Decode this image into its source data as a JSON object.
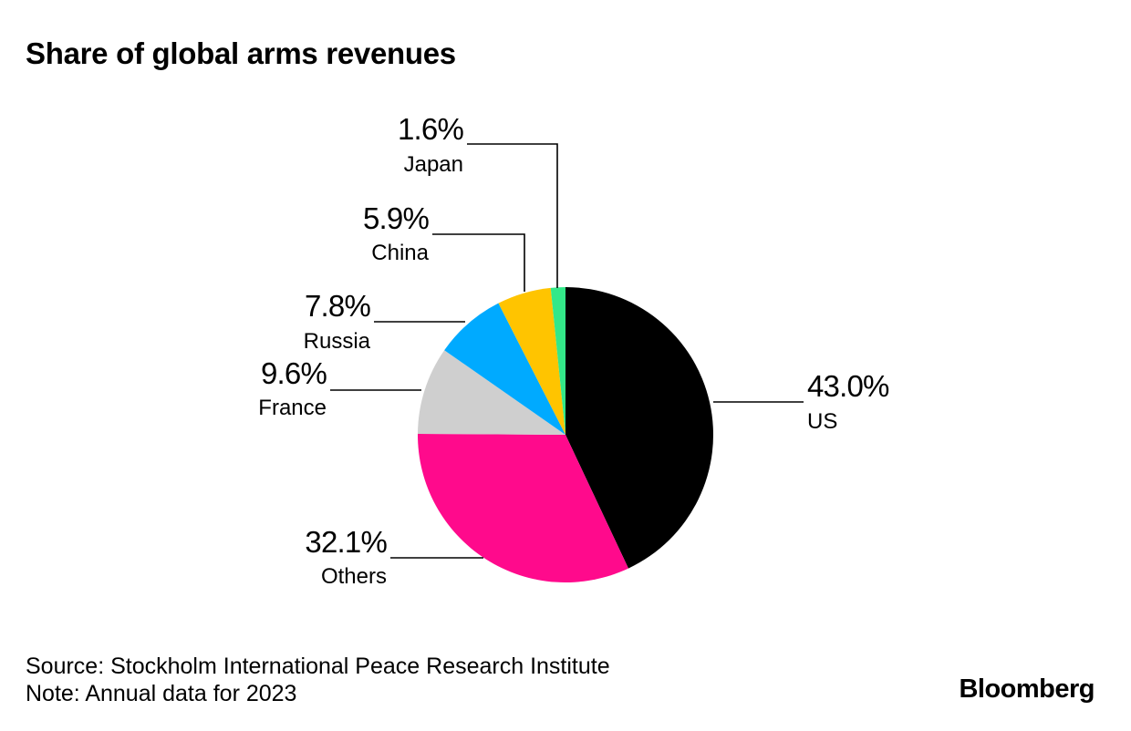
{
  "chart_data": {
    "type": "pie",
    "title": "Share of global arms revenues",
    "slices": [
      {
        "label": "US",
        "value": 43.0,
        "display": "43.0%",
        "color": "#000000"
      },
      {
        "label": "Others",
        "value": 32.1,
        "display": "32.1%",
        "color": "#FF0A8C"
      },
      {
        "label": "France",
        "value": 9.6,
        "display": "9.6%",
        "color": "#CFCFCF"
      },
      {
        "label": "Russia",
        "value": 7.8,
        "display": "7.8%",
        "color": "#00AAFF"
      },
      {
        "label": "China",
        "value": 5.9,
        "display": "5.9%",
        "color": "#FFC400"
      },
      {
        "label": "Japan",
        "value": 1.6,
        "display": "1.6%",
        "color": "#33E889"
      }
    ]
  },
  "footer": {
    "source": "Source: Stockholm International Peace Research Institute",
    "note": "Note: Annual data for 2023"
  },
  "brand": "Bloomberg"
}
